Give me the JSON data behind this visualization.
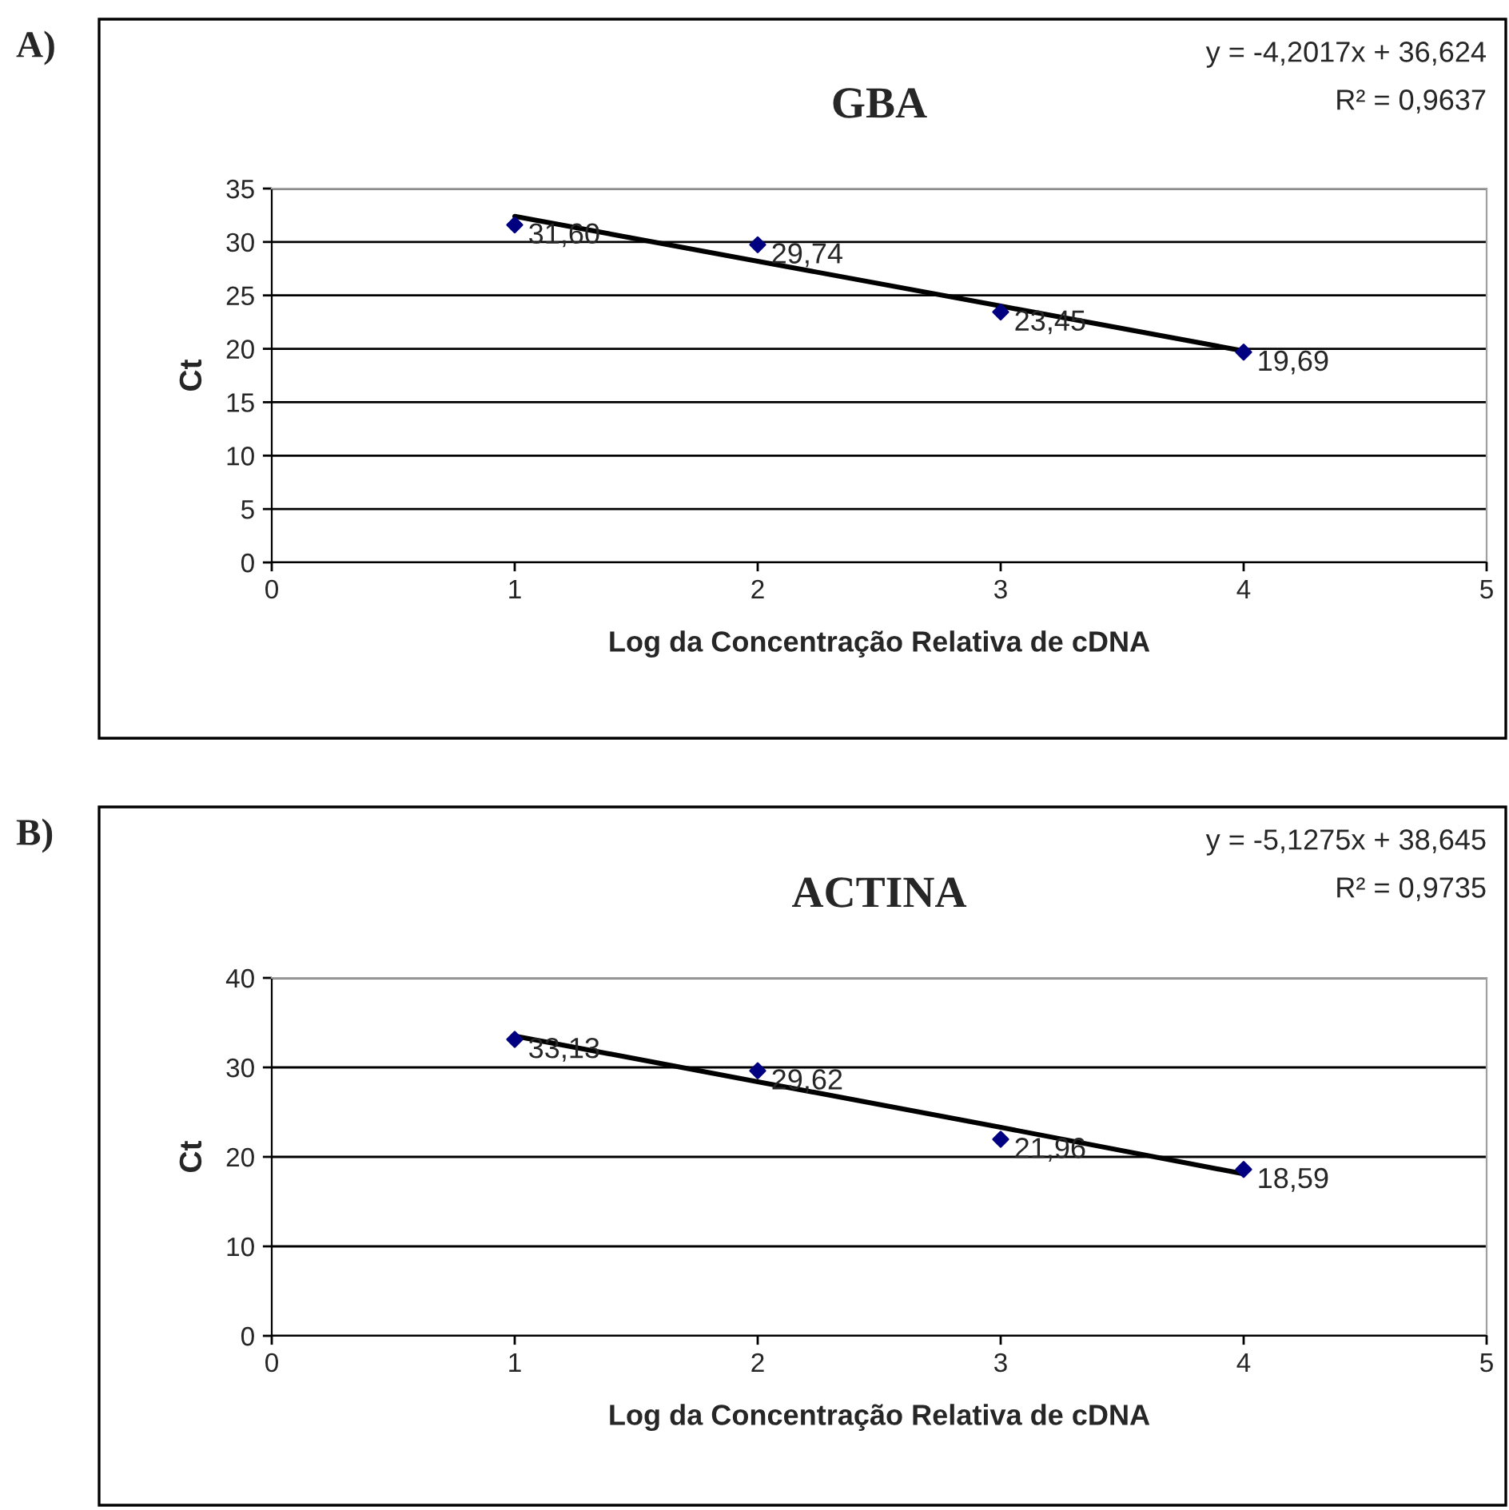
{
  "chart_data": [
    {
      "type": "scatter",
      "title": "GBA",
      "xlabel": "Log da Concentração Relativa de cDNA",
      "ylabel": "Ct",
      "annotations": [
        "A)",
        "y = -4,2017x + 36,624",
        "R² = 0,9637"
      ],
      "x": [
        1,
        2,
        3,
        4
      ],
      "xlim": [
        0,
        5
      ],
      "xticks": [
        0,
        1,
        2,
        3,
        4,
        5
      ],
      "ylim": [
        0,
        35
      ],
      "yticks": [
        0,
        5,
        10,
        15,
        20,
        25,
        30,
        35
      ],
      "grid": "y",
      "marker": "diamond",
      "series": [
        {
          "color": "#000080",
          "values": [
            31.6,
            29.74,
            23.45,
            19.69
          ],
          "value_labels": [
            "31,60",
            "29,74",
            "23,45",
            "19,69"
          ]
        },
        {
          "type": "line",
          "values": [
            32.4,
            28.2,
            24.0,
            19.8
          ],
          "color": "#000000",
          "marker": "none",
          "line_style": "solid"
        }
      ]
    },
    {
      "type": "scatter",
      "title": "ACTINA",
      "xlabel": "Log da Concentração Relativa de cDNA",
      "ylabel": "Ct",
      "annotations": [
        "B)",
        "y = -5,1275x + 38,645",
        "R² = 0,9735"
      ],
      "x": [
        1,
        2,
        3,
        4
      ],
      "xlim": [
        0,
        5
      ],
      "xticks": [
        0,
        1,
        2,
        3,
        4,
        5
      ],
      "ylim": [
        0,
        40
      ],
      "yticks": [
        0,
        10,
        20,
        30,
        40
      ],
      "grid": "y",
      "marker": "diamond",
      "series": [
        {
          "color": "#000080",
          "values": [
            33.13,
            29.62,
            21.96,
            18.59
          ],
          "value_labels": [
            "33,13",
            "29,62",
            "21,96",
            "18,59"
          ]
        },
        {
          "type": "line",
          "values": [
            33.5,
            28.4,
            23.3,
            18.1
          ],
          "color": "#000000",
          "marker": "none",
          "line_style": "solid"
        }
      ]
    }
  ]
}
